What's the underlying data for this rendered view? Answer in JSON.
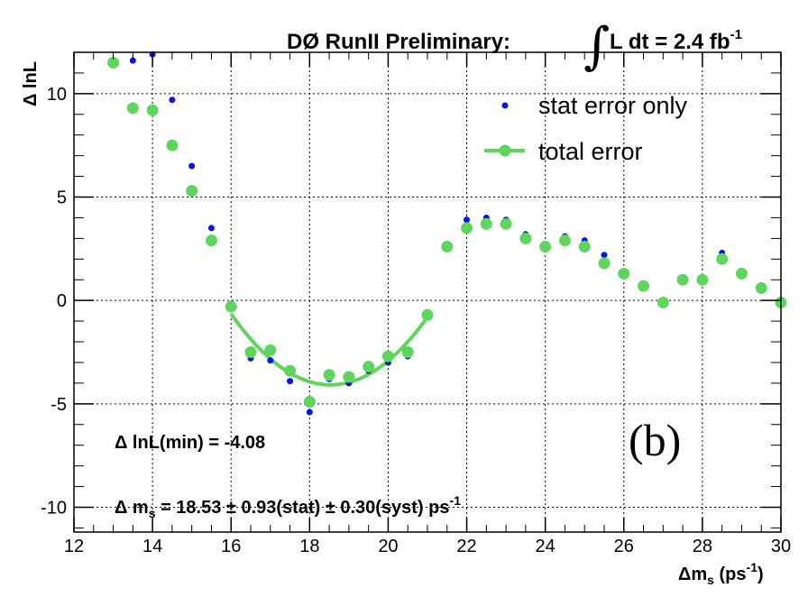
{
  "colors": {
    "stat": "#0a14e6",
    "total": "#5ed65e",
    "grid": "#000000",
    "axis": "#000000"
  },
  "chart_data": {
    "type": "scatter",
    "title": "DØ RunII Preliminary:",
    "luminosity_label": "L dt = 2.4 fb",
    "luminosity_exp": "-1",
    "integral_symbol": "∫",
    "xlabel": "Δm",
    "xlabel_sub": "s",
    "xlabel_unit": " (ps",
    "xlabel_exp": "-1",
    "xlabel_close": ")",
    "ylabel": "Δ lnL",
    "xlim": [
      12,
      30
    ],
    "ylim": [
      -11.2,
      12
    ],
    "xticks": [
      12,
      14,
      16,
      18,
      20,
      22,
      24,
      26,
      28,
      30
    ],
    "yticks": [
      -10,
      -5,
      0,
      5,
      10
    ],
    "xtick_labels": [
      "12",
      "14",
      "16",
      "18",
      "20",
      "22",
      "24",
      "26",
      "28",
      "30"
    ],
    "ytick_labels": [
      "-10",
      "-5",
      "0",
      "5",
      "10"
    ],
    "grid": true,
    "legend_position": "top-right",
    "series": [
      {
        "name": "stat error only",
        "x": [
          13.0,
          13.5,
          14.0,
          14.5,
          15.0,
          15.5,
          16.0,
          16.5,
          17.0,
          17.5,
          18.0,
          18.5,
          19.0,
          19.5,
          20.0,
          20.5,
          21.0,
          21.5,
          22.0,
          22.5,
          23.0,
          23.5,
          24.0,
          24.5,
          25.0,
          25.5,
          26.0,
          26.5,
          27.0,
          27.5,
          28.0,
          28.5,
          29.0,
          29.5,
          30.0
        ],
        "values": [
          11.5,
          11.6,
          11.9,
          9.7,
          6.5,
          3.5,
          -0.3,
          -2.8,
          -2.9,
          -3.9,
          -5.4,
          -3.8,
          -4.0,
          -3.4,
          -3.0,
          -2.7,
          -0.8,
          2.7,
          3.9,
          4.0,
          3.9,
          3.2,
          2.7,
          3.1,
          2.9,
          2.2,
          1.4,
          0.7,
          0.0,
          1.1,
          1.0,
          2.3,
          1.4,
          0.6,
          -0.1
        ]
      },
      {
        "name": "total error",
        "x": [
          13.0,
          13.5,
          14.0,
          14.5,
          15.0,
          15.5,
          16.0,
          16.5,
          17.0,
          17.5,
          18.0,
          18.5,
          19.0,
          19.5,
          20.0,
          20.5,
          21.0,
          21.5,
          22.0,
          22.5,
          23.0,
          23.5,
          24.0,
          24.5,
          25.0,
          25.5,
          26.0,
          26.5,
          27.0,
          27.5,
          28.0,
          28.5,
          29.0,
          29.5,
          30.0
        ],
        "values": [
          11.5,
          9.3,
          9.2,
          7.5,
          5.3,
          2.9,
          -0.3,
          -2.5,
          -2.4,
          -3.4,
          -4.9,
          -3.6,
          -3.7,
          -3.2,
          -2.7,
          -2.5,
          -0.7,
          2.6,
          3.5,
          3.7,
          3.7,
          3.0,
          2.6,
          2.9,
          2.6,
          1.8,
          1.3,
          0.7,
          -0.1,
          1.0,
          1.0,
          2.0,
          1.3,
          0.6,
          -0.1
        ]
      }
    ],
    "fit": {
      "name": "total error",
      "min_x": 18.53,
      "min_y": -4.08,
      "range": [
        16.0,
        21.0
      ]
    },
    "annotations": {
      "min_text": "Δ lnL(min) = -4.08",
      "ms_text": "Δ m",
      "ms_sub": "s",
      "ms_value": " = 18.53 ± 0.93(stat) ± 0.30(syst) ps",
      "ms_exp": "-1",
      "panel_label": "(b)"
    }
  }
}
